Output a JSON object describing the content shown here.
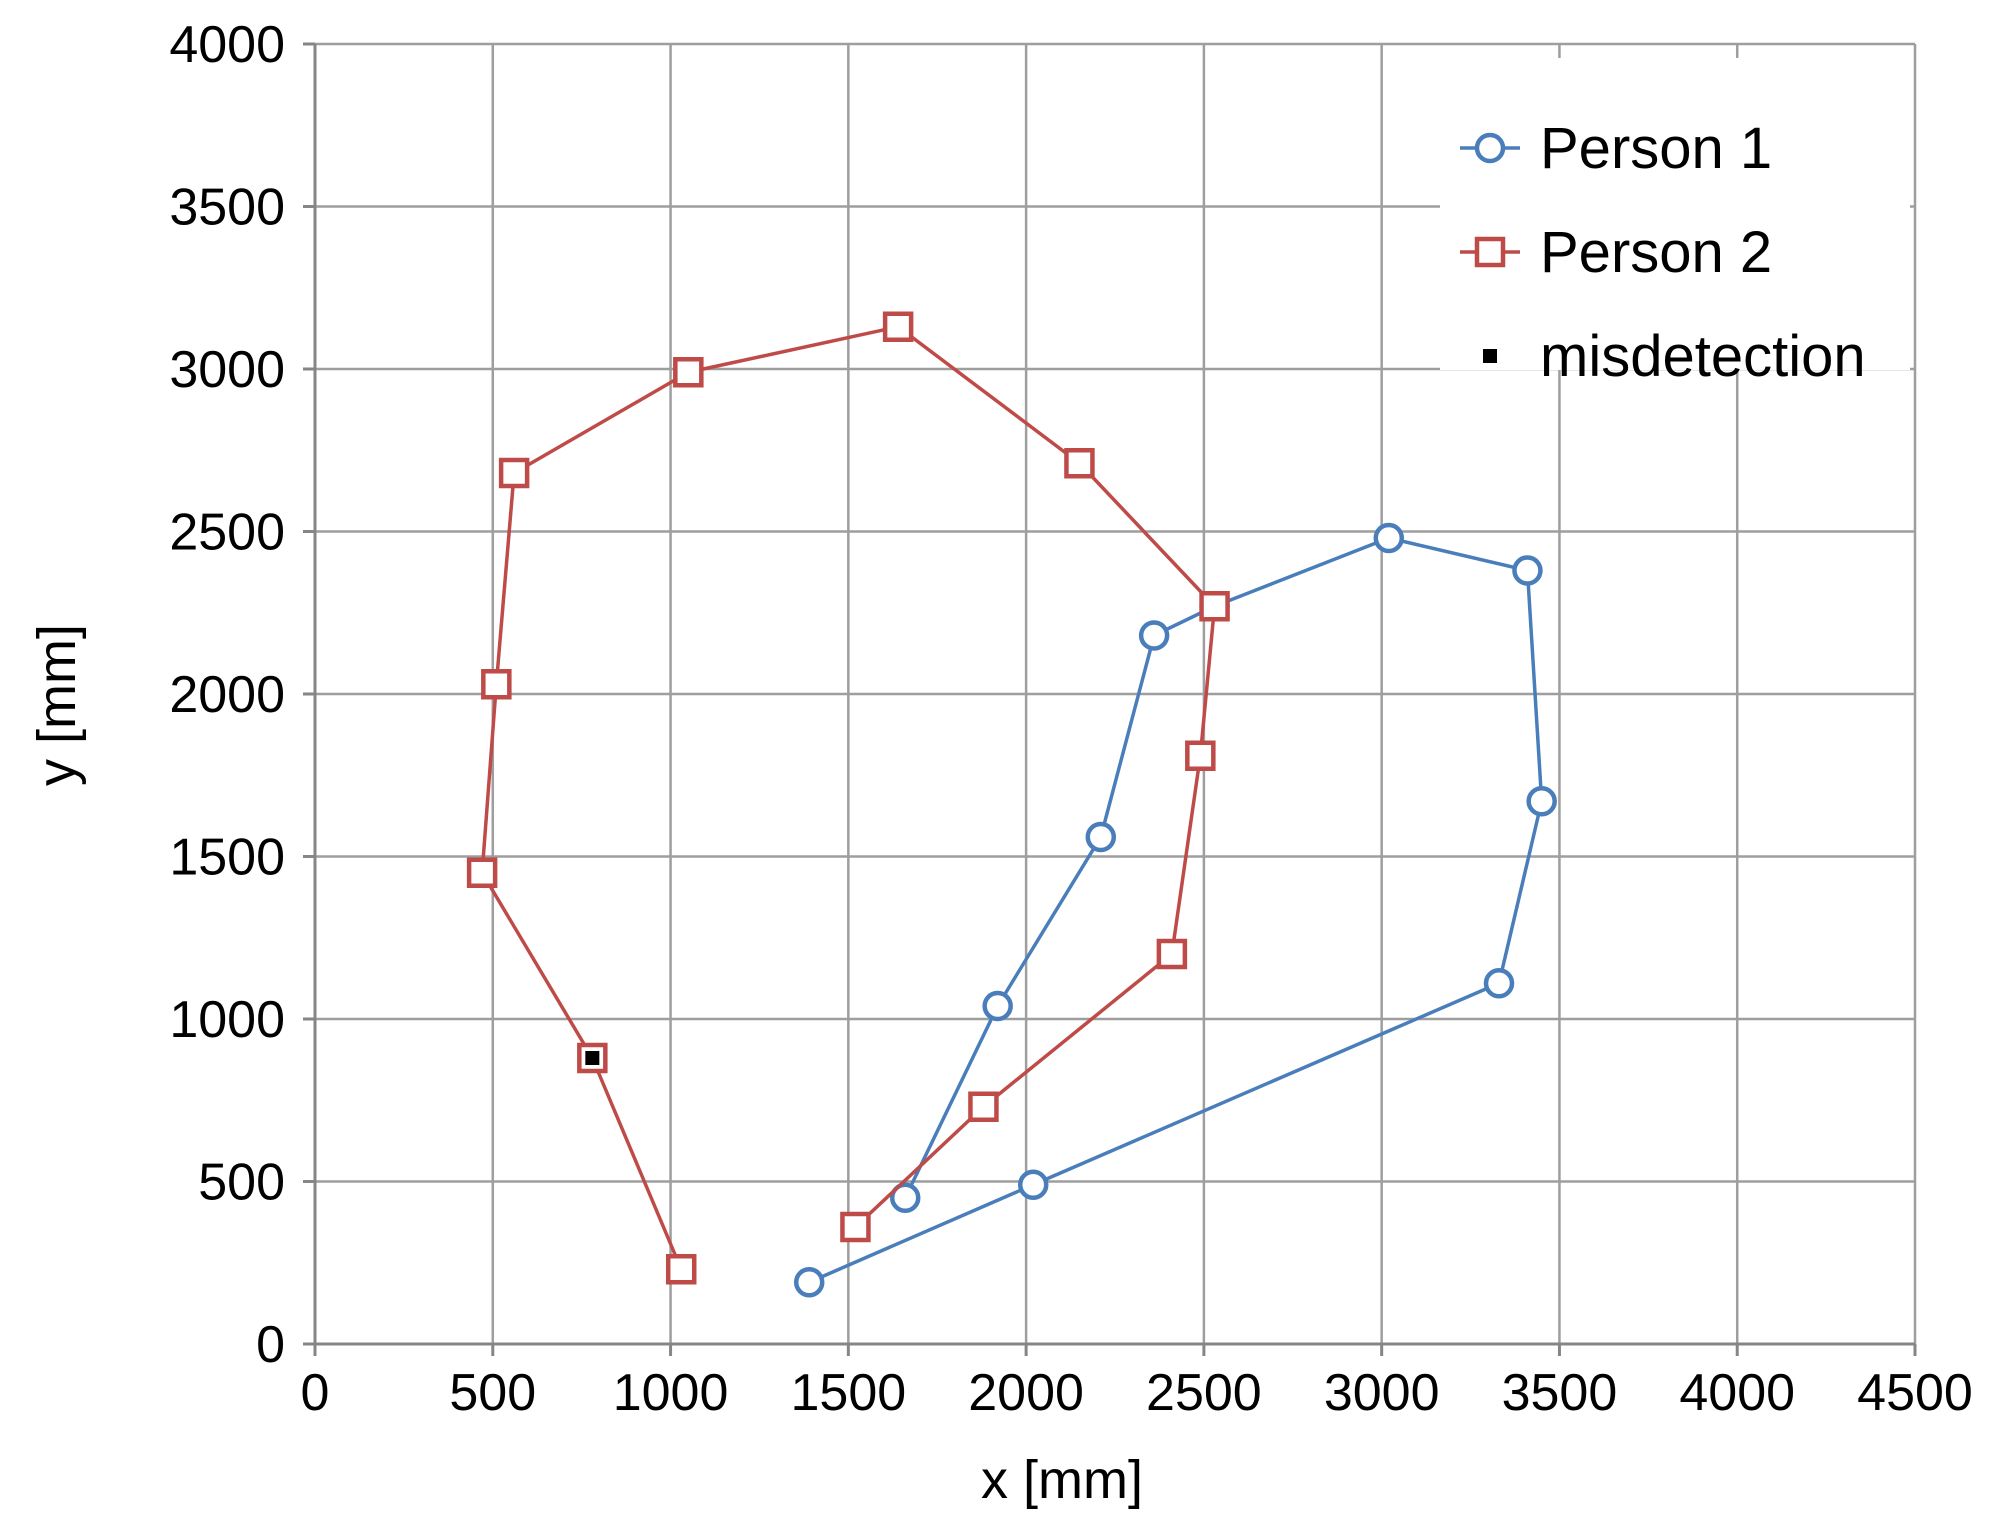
{
  "chart_data": {
    "type": "scatter",
    "xlabel": "x [mm]",
    "ylabel": "y [mm]",
    "xlim": [
      0,
      4500
    ],
    "ylim": [
      0,
      4000
    ],
    "x_ticks": [
      0,
      500,
      1000,
      1500,
      2000,
      2500,
      3000,
      3500,
      4000,
      4500
    ],
    "y_ticks": [
      0,
      500,
      1000,
      1500,
      2000,
      2500,
      3000,
      3500,
      4000
    ],
    "grid": true,
    "legend_position": "top-right",
    "series": [
      {
        "name": "Person 1",
        "marker": "circle",
        "color": "#4a7ebb",
        "points": [
          {
            "x": 1390,
            "y": 190
          },
          {
            "x": 2020,
            "y": 490
          },
          {
            "x": 3330,
            "y": 1110
          },
          {
            "x": 3450,
            "y": 1670
          },
          {
            "x": 3410,
            "y": 2380
          },
          {
            "x": 3020,
            "y": 2480
          },
          {
            "x": 2530,
            "y": 2270
          },
          {
            "x": 2360,
            "y": 2180
          },
          {
            "x": 2210,
            "y": 1560
          },
          {
            "x": 1920,
            "y": 1040
          },
          {
            "x": 1660,
            "y": 450
          }
        ]
      },
      {
        "name": "Person 2",
        "marker": "square",
        "color": "#be4b48",
        "points": [
          {
            "x": 1520,
            "y": 360
          },
          {
            "x": 1880,
            "y": 730
          },
          {
            "x": 2410,
            "y": 1200
          },
          {
            "x": 2490,
            "y": 1810
          },
          {
            "x": 2530,
            "y": 2270
          },
          {
            "x": 2150,
            "y": 2710
          },
          {
            "x": 1640,
            "y": 3130
          },
          {
            "x": 1050,
            "y": 2990
          },
          {
            "x": 560,
            "y": 2680
          },
          {
            "x": 510,
            "y": 2030
          },
          {
            "x": 470,
            "y": 1450
          },
          {
            "x": 780,
            "y": 880
          },
          {
            "x": 1030,
            "y": 230
          }
        ]
      }
    ],
    "misdetection": {
      "name": "misdetection",
      "marker": "filled-square",
      "color": "#000000",
      "points": [
        {
          "x": 780,
          "y": 880
        }
      ]
    }
  }
}
